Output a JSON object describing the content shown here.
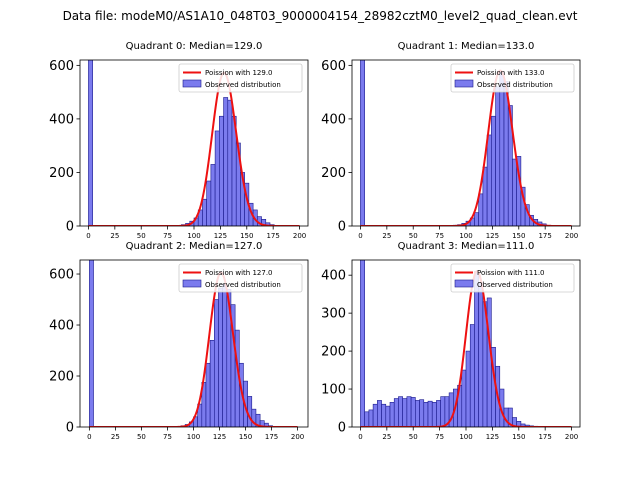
{
  "figure": {
    "suptitle": "Data file: modeM0/AS1A10_048T03_9000004154_28982cztM0_level2_quad_clean.evt"
  },
  "colors": {
    "bar_fill": "#7b7bee",
    "bar_edge": "#1a1a8c",
    "fit_line": "#ee1111"
  },
  "chart_data": [
    {
      "type": "bar",
      "title": "Quadrant 0: Median=129.0",
      "xlim": [
        -8,
        208
      ],
      "ylim": [
        0,
        620
      ],
      "xticks": [
        0,
        25,
        50,
        75,
        100,
        125,
        150,
        175,
        200
      ],
      "yticks": [
        0,
        200,
        400,
        600
      ],
      "bin_width": 4,
      "bin_starts": [
        0,
        84,
        88,
        92,
        96,
        100,
        104,
        108,
        112,
        116,
        120,
        124,
        128,
        132,
        136,
        140,
        144,
        148,
        152,
        156,
        160,
        164,
        168,
        172
      ],
      "values": [
        620,
        1,
        5,
        10,
        18,
        30,
        60,
        100,
        168,
        230,
        355,
        410,
        480,
        470,
        410,
        310,
        200,
        160,
        85,
        60,
        35,
        25,
        12,
        5
      ],
      "fit": {
        "lambda": 129.0,
        "scale": 572
      },
      "legend": [
        "Poission with 129.0",
        "Observed distribution"
      ]
    },
    {
      "type": "bar",
      "title": "Quadrant 1: Median=133.0",
      "xlim": [
        -8,
        208
      ],
      "ylim": [
        0,
        620
      ],
      "xticks": [
        0,
        25,
        50,
        75,
        100,
        125,
        150,
        175,
        200
      ],
      "yticks": [
        0,
        200,
        400,
        600
      ],
      "bin_width": 4,
      "bin_starts": [
        0,
        88,
        92,
        96,
        100,
        104,
        108,
        112,
        116,
        120,
        124,
        128,
        132,
        136,
        140,
        144,
        148,
        152,
        156,
        160,
        164,
        168,
        172,
        176
      ],
      "values": [
        620,
        3,
        5,
        10,
        18,
        30,
        50,
        120,
        220,
        340,
        410,
        520,
        575,
        540,
        450,
        250,
        260,
        145,
        80,
        40,
        25,
        15,
        8,
        3
      ],
      "fit": {
        "lambda": 133.0,
        "scale": 580
      },
      "legend": [
        "Poission with 133.0",
        "Observed distribution"
      ]
    },
    {
      "type": "bar",
      "title": "Quadrant 2: Median=127.0",
      "xlim": [
        -9,
        210
      ],
      "ylim": [
        0,
        655
      ],
      "xticks": [
        0,
        25,
        50,
        75,
        100,
        125,
        150,
        175,
        200
      ],
      "yticks": [
        0,
        200,
        400,
        600
      ],
      "bin_width": 4,
      "bin_starts": [
        0,
        84,
        88,
        92,
        96,
        100,
        104,
        108,
        112,
        116,
        120,
        124,
        128,
        132,
        136,
        140,
        144,
        148,
        152,
        156,
        160,
        164,
        168,
        172
      ],
      "values": [
        655,
        1,
        5,
        10,
        20,
        40,
        90,
        175,
        250,
        340,
        500,
        545,
        560,
        540,
        480,
        380,
        250,
        180,
        120,
        70,
        50,
        25,
        15,
        5
      ],
      "fit": {
        "lambda": 127.0,
        "scale": 605
      },
      "legend": [
        "Poission with 127.0",
        "Observed distribution"
      ]
    },
    {
      "type": "bar",
      "title": "Quadrant 3: Median=111.0",
      "xlim": [
        -8,
        208
      ],
      "ylim": [
        0,
        440
      ],
      "xticks": [
        0,
        25,
        50,
        75,
        100,
        125,
        150,
        175,
        200
      ],
      "yticks": [
        0,
        100,
        200,
        300,
        400
      ],
      "bin_width": 4,
      "bin_starts": [
        0,
        4,
        8,
        12,
        16,
        20,
        24,
        28,
        32,
        36,
        40,
        44,
        48,
        52,
        56,
        60,
        64,
        68,
        72,
        76,
        80,
        84,
        88,
        92,
        96,
        100,
        104,
        108,
        112,
        116,
        120,
        124,
        128,
        132,
        136,
        140,
        144,
        148,
        152,
        156,
        160,
        164,
        168,
        172
      ],
      "values": [
        440,
        40,
        45,
        60,
        70,
        60,
        55,
        65,
        75,
        80,
        75,
        80,
        78,
        70,
        72,
        65,
        68,
        65,
        70,
        80,
        80,
        90,
        100,
        110,
        150,
        200,
        270,
        410,
        380,
        330,
        340,
        210,
        160,
        100,
        50,
        50,
        25,
        15,
        8,
        5,
        3,
        2,
        1,
        1
      ],
      "fit": {
        "lambda": 111.0,
        "scale": 410
      },
      "legend": [
        "Poission with 111.0",
        "Observed distribution"
      ]
    }
  ]
}
